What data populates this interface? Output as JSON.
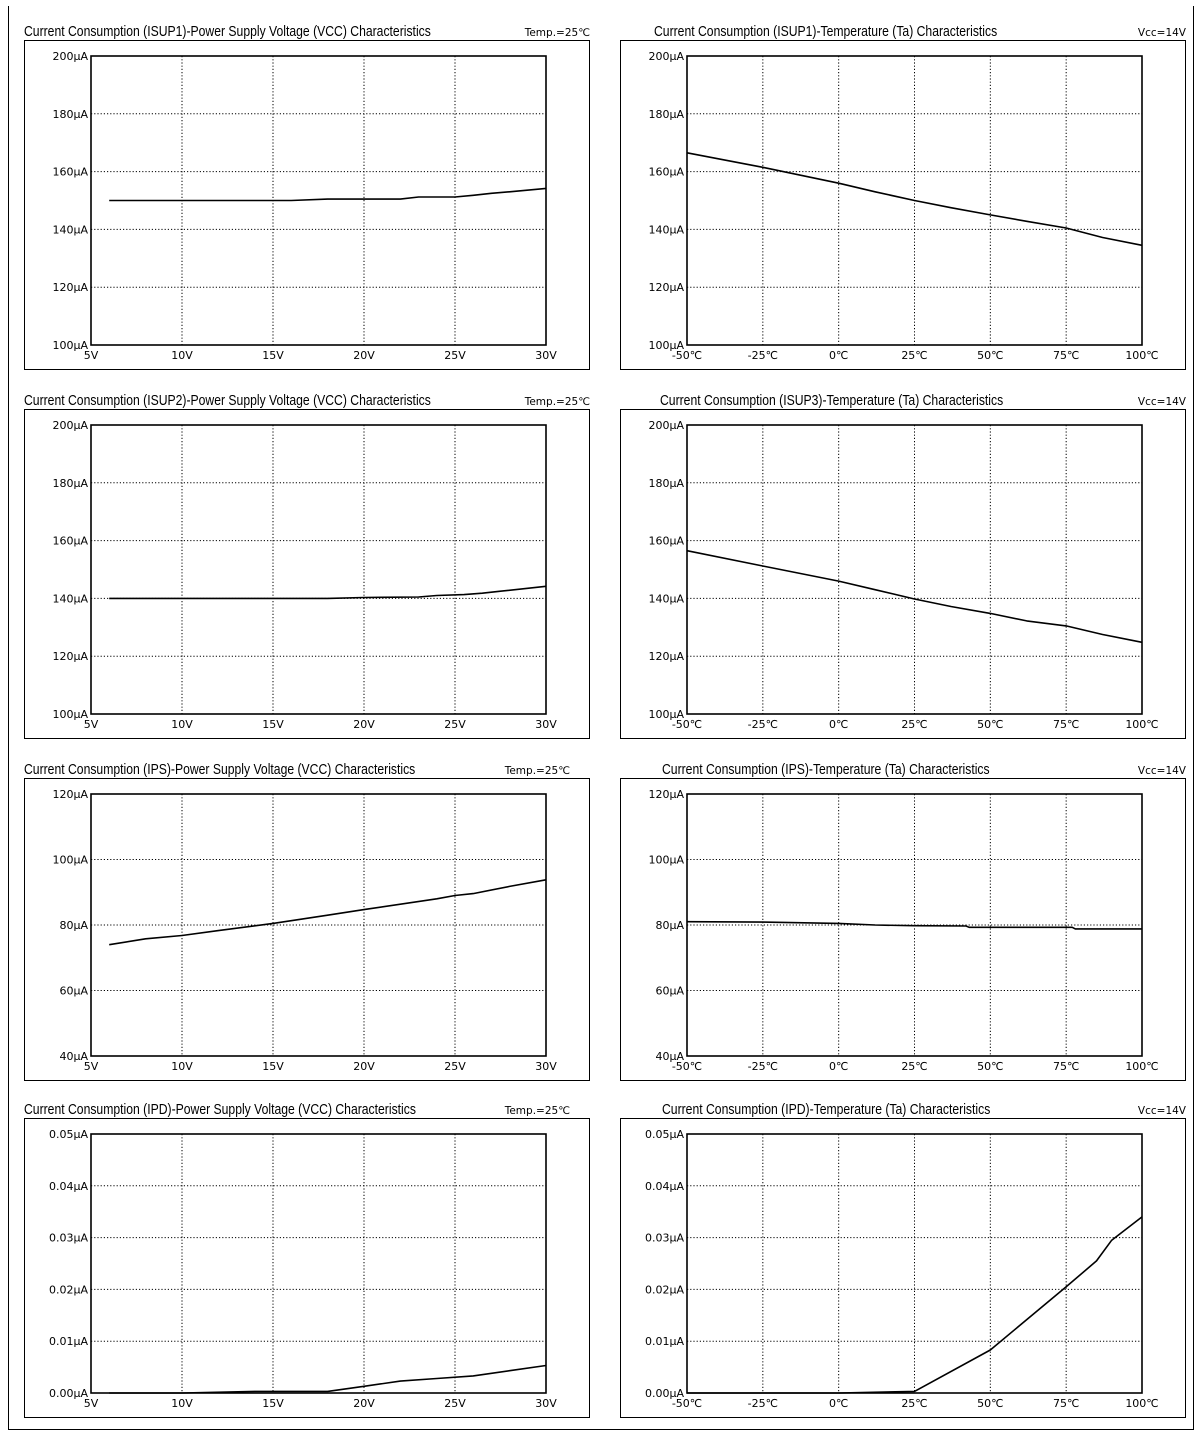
{
  "chart_data": [
    {
      "type": "line",
      "title": "Current Consumption (ISUP1)-Power Supply Voltage (VCC) Characteristics",
      "condition": "Temp.=25℃",
      "xlim": [
        5,
        30
      ],
      "ylim": [
        100,
        200
      ],
      "x_ticks": [
        5,
        10,
        15,
        20,
        25,
        30
      ],
      "x_tick_labels": [
        "5V",
        "10V",
        "15V",
        "20V",
        "25V",
        "30V"
      ],
      "y_ticks": [
        100,
        120,
        140,
        160,
        180,
        200
      ],
      "y_tick_labels": [
        "100μA",
        "120μA",
        "140μA",
        "160μA",
        "180μA",
        "200μA"
      ],
      "grid": true,
      "series": [
        {
          "x": [
            6,
            10,
            16,
            18,
            22,
            23,
            25,
            26,
            27,
            28,
            30
          ],
          "values": [
            150,
            150,
            150,
            150.5,
            150.5,
            151.2,
            151.2,
            151.8,
            152.5,
            153,
            154.2
          ]
        }
      ]
    },
    {
      "type": "line",
      "title": "Current Consumption (ISUP1)-Temperature (Ta) Characteristics",
      "condition": "Vcc=14V",
      "xlim": [
        -50,
        100
      ],
      "ylim": [
        100,
        200
      ],
      "x_ticks": [
        -50,
        -25,
        0,
        25,
        50,
        75,
        100
      ],
      "x_tick_labels": [
        "-50℃",
        "-25℃",
        "0℃",
        "25℃",
        "50℃",
        "75℃",
        "100℃"
      ],
      "y_ticks": [
        100,
        120,
        140,
        160,
        180,
        200
      ],
      "y_tick_labels": [
        "100μA",
        "120μA",
        "140μA",
        "160μA",
        "180μA",
        "200μA"
      ],
      "grid": true,
      "series": [
        {
          "x": [
            -50,
            -25,
            0,
            12,
            25,
            37,
            50,
            62,
            75,
            87,
            100
          ],
          "values": [
            166.5,
            161.5,
            156,
            153,
            150,
            147.5,
            145,
            142.8,
            140.5,
            137.2,
            134.5
          ]
        }
      ]
    },
    {
      "type": "line",
      "title": "Current Consumption (ISUP2)-Power Supply Voltage (VCC) Characteristics",
      "condition": "Temp.=25℃",
      "xlim": [
        5,
        30
      ],
      "ylim": [
        100,
        200
      ],
      "x_ticks": [
        5,
        10,
        15,
        20,
        25,
        30
      ],
      "x_tick_labels": [
        "5V",
        "10V",
        "15V",
        "20V",
        "25V",
        "30V"
      ],
      "y_ticks": [
        100,
        120,
        140,
        160,
        180,
        200
      ],
      "y_tick_labels": [
        "100μA",
        "120μA",
        "140μA",
        "160μA",
        "180μA",
        "200μA"
      ],
      "grid": true,
      "series": [
        {
          "x": [
            6,
            10,
            15,
            18,
            20,
            23,
            24,
            25.5,
            26.5,
            27.5,
            30
          ],
          "values": [
            140,
            140,
            140,
            140,
            140.3,
            140.5,
            141,
            141.3,
            141.8,
            142.5,
            144.2
          ]
        }
      ]
    },
    {
      "type": "line",
      "title": "Current Consumption (ISUP3)-Temperature (Ta) Characteristics",
      "condition": "Vcc=14V",
      "xlim": [
        -50,
        100
      ],
      "ylim": [
        100,
        200
      ],
      "x_ticks": [
        -50,
        -25,
        0,
        25,
        50,
        75,
        100
      ],
      "x_tick_labels": [
        "-50℃",
        "-25℃",
        "0℃",
        "25℃",
        "50℃",
        "75℃",
        "100℃"
      ],
      "y_ticks": [
        100,
        120,
        140,
        160,
        180,
        200
      ],
      "y_tick_labels": [
        "100μA",
        "120μA",
        "140μA",
        "160μA",
        "180μA",
        "200μA"
      ],
      "grid": true,
      "series": [
        {
          "x": [
            -50,
            -25,
            0,
            12,
            25,
            37,
            50,
            62,
            75,
            87,
            100
          ],
          "values": [
            156.5,
            151.2,
            146,
            143,
            139.8,
            137.2,
            134.8,
            132.2,
            130.5,
            127.5,
            124.8
          ]
        }
      ]
    },
    {
      "type": "line",
      "title": "Current Consumption (IPS)-Power Supply Voltage (VCC) Characteristics",
      "condition": "Temp.=25℃",
      "xlim": [
        5,
        30
      ],
      "ylim": [
        40,
        120
      ],
      "x_ticks": [
        5,
        10,
        15,
        20,
        25,
        30
      ],
      "x_tick_labels": [
        "5V",
        "10V",
        "15V",
        "20V",
        "25V",
        "30V"
      ],
      "y_ticks": [
        40,
        60,
        80,
        100,
        120
      ],
      "y_tick_labels": [
        "40μA",
        "60μA",
        "80μA",
        "100μA",
        "120μA"
      ],
      "grid": true,
      "series": [
        {
          "x": [
            6,
            8,
            10,
            12,
            15,
            18,
            20,
            24,
            25,
            26,
            28,
            30
          ],
          "values": [
            74,
            75.8,
            76.8,
            78.3,
            80.5,
            83,
            84.7,
            88,
            89,
            89.6,
            91.8,
            93.8
          ]
        }
      ]
    },
    {
      "type": "line",
      "title": "Current Consumption (IPS)-Temperature (Ta) Characteristics",
      "condition": "Vcc=14V",
      "xlim": [
        -50,
        100
      ],
      "ylim": [
        40,
        120
      ],
      "x_ticks": [
        -50,
        -25,
        0,
        25,
        50,
        75,
        100
      ],
      "x_tick_labels": [
        "-50℃",
        "-25℃",
        "0℃",
        "25℃",
        "50℃",
        "75℃",
        "100℃"
      ],
      "y_ticks": [
        40,
        60,
        80,
        100,
        120
      ],
      "y_tick_labels": [
        "40μA",
        "60μA",
        "80μA",
        "100μA",
        "120μA"
      ],
      "grid": true,
      "series": [
        {
          "x": [
            -50,
            -25,
            0,
            12,
            25,
            42,
            43,
            77,
            78,
            100
          ],
          "values": [
            81,
            80.9,
            80.5,
            80,
            79.8,
            79.7,
            79.3,
            79.3,
            78.8,
            78.8
          ]
        }
      ]
    },
    {
      "type": "line",
      "title": "Current Consumption (IPD)-Power Supply Voltage (VCC) Characteristics",
      "condition": "Temp.=25℃",
      "xlim": [
        5,
        30
      ],
      "ylim": [
        0,
        0.05
      ],
      "x_ticks": [
        5,
        10,
        15,
        20,
        25,
        30
      ],
      "x_tick_labels": [
        "5V",
        "10V",
        "15V",
        "20V",
        "25V",
        "30V"
      ],
      "y_ticks": [
        0,
        0.01,
        0.02,
        0.03,
        0.04,
        0.05
      ],
      "y_tick_labels": [
        "0.00μA",
        "0.01μA",
        "0.02μA",
        "0.03μA",
        "0.04μA",
        "0.05μA"
      ],
      "grid": true,
      "series": [
        {
          "x": [
            6,
            10,
            14,
            18,
            20,
            22,
            24,
            26,
            28,
            30
          ],
          "values": [
            0,
            0,
            0.0003,
            0.0003,
            0.0013,
            0.0023,
            0.0028,
            0.0033,
            0.0043,
            0.0053
          ]
        }
      ]
    },
    {
      "type": "line",
      "title": "Current Consumption (IPD)-Temperature (Ta) Characteristics",
      "condition": "Vcc=14V",
      "xlim": [
        -50,
        100
      ],
      "ylim": [
        0,
        0.05
      ],
      "x_ticks": [
        -50,
        -25,
        0,
        25,
        50,
        75,
        100
      ],
      "x_tick_labels": [
        "-50℃",
        "-25℃",
        "0℃",
        "25℃",
        "50℃",
        "75℃",
        "100℃"
      ],
      "y_ticks": [
        0,
        0.01,
        0.02,
        0.03,
        0.04,
        0.05
      ],
      "y_tick_labels": [
        "0.00μA",
        "0.01μA",
        "0.02μA",
        "0.03μA",
        "0.04μA",
        "0.05μA"
      ],
      "grid": true,
      "series": [
        {
          "x": [
            -50,
            0,
            25,
            50,
            75,
            85,
            90,
            100
          ],
          "values": [
            0,
            0,
            0.0003,
            0.0083,
            0.0205,
            0.0255,
            0.0295,
            0.034
          ]
        }
      ]
    }
  ]
}
